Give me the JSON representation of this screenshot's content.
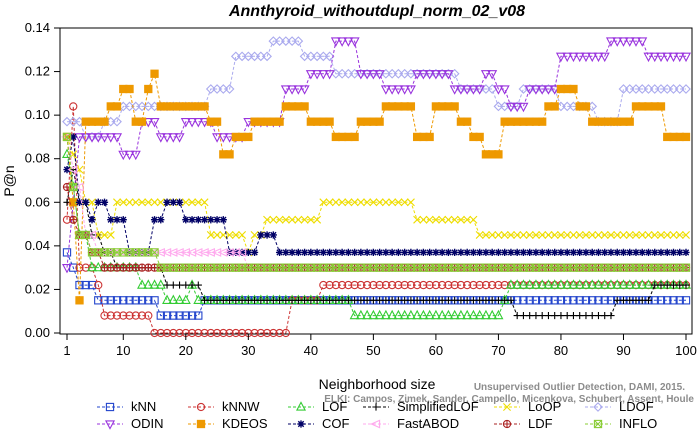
{
  "chart_data": {
    "type": "line",
    "title": "Annthyroid_withoutdupl_norm_02_v08",
    "xlabel": "Neighborhood size",
    "ylabel": "P@n",
    "xlim": [
      1,
      100
    ],
    "ylim": [
      0,
      0.14
    ],
    "x_ticks": [
      1,
      10,
      20,
      30,
      40,
      50,
      60,
      70,
      80,
      90,
      100
    ],
    "y_ticks": [
      0.0,
      0.02,
      0.04,
      0.06,
      0.08,
      0.1,
      0.12,
      0.14
    ],
    "x_tick_labels": [
      "1",
      "10",
      "20",
      "30",
      "40",
      "50",
      "60",
      "70",
      "80",
      "90",
      "100"
    ],
    "y_tick_labels": [
      "0.00",
      "0.02",
      "0.04",
      "0.06",
      "0.08",
      "0.10",
      "0.12",
      "0.14"
    ],
    "grid": false,
    "legend_position": "bottom",
    "credit": "ELKI: Campos, Zimek, Sander, Campello, Micenkova, Schubert, Assent, Houle\nUnsupervised Outlier Detection, DAMI, 2015.",
    "series": [
      {
        "name": "kNN",
        "color": "#2244cc",
        "marker": "square",
        "points": [
          [
            1,
            0.037
          ],
          [
            2,
            0.03
          ],
          [
            3,
            0.022
          ],
          [
            5,
            0.022
          ],
          [
            6,
            0.015
          ],
          [
            8,
            0.015
          ],
          [
            9,
            0.015
          ],
          [
            15,
            0.015
          ],
          [
            16,
            0.008
          ],
          [
            22,
            0.008
          ],
          [
            23,
            0.015
          ],
          [
            100,
            0.015
          ]
        ]
      },
      {
        "name": "kNNW",
        "color": "#cc3333",
        "marker": "circle",
        "points": [
          [
            1,
            0.052
          ],
          [
            2,
            0.104
          ],
          [
            3,
            0.03
          ],
          [
            6,
            0.022
          ],
          [
            7,
            0.008
          ],
          [
            14,
            0.008
          ],
          [
            15,
            0.0
          ],
          [
            36,
            0.0
          ],
          [
            37,
            0.015
          ],
          [
            41,
            0.015
          ],
          [
            42,
            0.022
          ],
          [
            100,
            0.022
          ]
        ]
      },
      {
        "name": "LOF",
        "color": "#33cc33",
        "marker": "triangle-up",
        "points": [
          [
            1,
            0.082
          ],
          [
            2,
            0.067
          ],
          [
            3,
            0.045
          ],
          [
            5,
            0.03
          ],
          [
            9,
            0.03
          ],
          [
            13,
            0.022
          ],
          [
            17,
            0.015
          ],
          [
            21,
            0.022
          ],
          [
            22,
            0.015
          ],
          [
            46,
            0.015
          ],
          [
            47,
            0.008
          ],
          [
            70,
            0.008
          ],
          [
            71,
            0.015
          ],
          [
            72,
            0.022
          ],
          [
            100,
            0.022
          ]
        ]
      },
      {
        "name": "SimplifiedLOF",
        "color": "#000000",
        "marker": "plus",
        "points": [
          [
            1,
            0.06
          ],
          [
            2,
            0.075
          ],
          [
            3,
            0.06
          ],
          [
            5,
            0.045
          ],
          [
            7,
            0.037
          ],
          [
            9,
            0.03
          ],
          [
            16,
            0.03
          ],
          [
            17,
            0.022
          ],
          [
            22,
            0.022
          ],
          [
            23,
            0.015
          ],
          [
            72,
            0.015
          ],
          [
            73,
            0.008
          ],
          [
            88,
            0.008
          ],
          [
            89,
            0.015
          ],
          [
            94,
            0.015
          ],
          [
            95,
            0.022
          ],
          [
            100,
            0.022
          ]
        ]
      },
      {
        "name": "LoOP",
        "color": "#eedd00",
        "marker": "cross",
        "points": [
          [
            1,
            0.09
          ],
          [
            2,
            0.082
          ],
          [
            3,
            0.075
          ],
          [
            4,
            0.06
          ],
          [
            6,
            0.045
          ],
          [
            9,
            0.06
          ],
          [
            22,
            0.06
          ],
          [
            24,
            0.045
          ],
          [
            29,
            0.045
          ],
          [
            30,
            0.037
          ],
          [
            31,
            0.045
          ],
          [
            33,
            0.052
          ],
          [
            41,
            0.052
          ],
          [
            42,
            0.06
          ],
          [
            56,
            0.06
          ],
          [
            57,
            0.052
          ],
          [
            66,
            0.052
          ],
          [
            67,
            0.045
          ],
          [
            100,
            0.045
          ]
        ]
      },
      {
        "name": "LDOF",
        "color": "#aaaaee",
        "marker": "diamond",
        "points": [
          [
            1,
            0.097
          ],
          [
            4,
            0.09
          ],
          [
            7,
            0.097
          ],
          [
            10,
            0.104
          ],
          [
            20,
            0.104
          ],
          [
            24,
            0.112
          ],
          [
            28,
            0.127
          ],
          [
            34,
            0.134
          ],
          [
            37,
            0.134
          ],
          [
            39,
            0.127
          ],
          [
            44,
            0.119
          ],
          [
            50,
            0.119
          ],
          [
            60,
            0.119
          ],
          [
            64,
            0.112
          ],
          [
            70,
            0.104
          ],
          [
            74,
            0.112
          ],
          [
            80,
            0.104
          ],
          [
            86,
            0.097
          ],
          [
            90,
            0.112
          ],
          [
            100,
            0.112
          ]
        ]
      },
      {
        "name": "ODIN",
        "color": "#9933dd",
        "marker": "triangle-down",
        "points": [
          [
            1,
            0.03
          ],
          [
            2,
            0.06
          ],
          [
            3,
            0.09
          ],
          [
            5,
            0.09
          ],
          [
            8,
            0.09
          ],
          [
            10,
            0.082
          ],
          [
            13,
            0.097
          ],
          [
            16,
            0.09
          ],
          [
            20,
            0.097
          ],
          [
            25,
            0.09
          ],
          [
            30,
            0.097
          ],
          [
            36,
            0.112
          ],
          [
            40,
            0.119
          ],
          [
            44,
            0.134
          ],
          [
            48,
            0.119
          ],
          [
            52,
            0.112
          ],
          [
            57,
            0.119
          ],
          [
            63,
            0.112
          ],
          [
            68,
            0.119
          ],
          [
            70,
            0.112
          ],
          [
            72,
            0.104
          ],
          [
            75,
            0.112
          ],
          [
            80,
            0.127
          ],
          [
            84,
            0.127
          ],
          [
            88,
            0.134
          ],
          [
            91,
            0.134
          ],
          [
            94,
            0.127
          ],
          [
            97,
            0.127
          ],
          [
            100,
            0.127
          ]
        ]
      },
      {
        "name": "KDEOS",
        "color": "#ee9900",
        "marker": "square-filled",
        "points": [
          [
            1,
            0.09
          ],
          [
            2,
            0.06
          ],
          [
            3,
            0.015
          ],
          [
            4,
            0.097
          ],
          [
            8,
            0.104
          ],
          [
            10,
            0.112
          ],
          [
            12,
            0.097
          ],
          [
            14,
            0.112
          ],
          [
            15,
            0.119
          ],
          [
            16,
            0.104
          ],
          [
            24,
            0.097
          ],
          [
            26,
            0.082
          ],
          [
            28,
            0.09
          ],
          [
            31,
            0.097
          ],
          [
            36,
            0.104
          ],
          [
            40,
            0.097
          ],
          [
            44,
            0.09
          ],
          [
            48,
            0.097
          ],
          [
            52,
            0.104
          ],
          [
            57,
            0.09
          ],
          [
            60,
            0.104
          ],
          [
            64,
            0.097
          ],
          [
            66,
            0.09
          ],
          [
            68,
            0.082
          ],
          [
            71,
            0.097
          ],
          [
            76,
            0.097
          ],
          [
            78,
            0.104
          ],
          [
            80,
            0.112
          ],
          [
            83,
            0.104
          ],
          [
            85,
            0.097
          ],
          [
            92,
            0.104
          ],
          [
            97,
            0.09
          ],
          [
            100,
            0.09
          ]
        ]
      },
      {
        "name": "COF",
        "color": "#000066",
        "marker": "asterisk",
        "points": [
          [
            1,
            0.075
          ],
          [
            2,
            0.09
          ],
          [
            3,
            0.06
          ],
          [
            5,
            0.052
          ],
          [
            6,
            0.06
          ],
          [
            8,
            0.052
          ],
          [
            11,
            0.037
          ],
          [
            15,
            0.052
          ],
          [
            17,
            0.06
          ],
          [
            20,
            0.052
          ],
          [
            25,
            0.052
          ],
          [
            27,
            0.037
          ],
          [
            32,
            0.045
          ],
          [
            35,
            0.037
          ],
          [
            100,
            0.037
          ]
        ]
      },
      {
        "name": "FastABOD",
        "color": "#ffaaee",
        "marker": "triangle-left",
        "points": [
          [
            1,
            0.09
          ],
          [
            2,
            0.075
          ],
          [
            3,
            0.067
          ],
          [
            4,
            0.045
          ],
          [
            6,
            0.037
          ],
          [
            11,
            0.037
          ],
          [
            22,
            0.037
          ],
          [
            24,
            0.037
          ],
          [
            30,
            0.03
          ],
          [
            100,
            0.03
          ]
        ]
      },
      {
        "name": "LDF",
        "color": "#aa2222",
        "marker": "circle-plus",
        "points": [
          [
            1,
            0.067
          ],
          [
            2,
            0.052
          ],
          [
            3,
            0.045
          ],
          [
            5,
            0.037
          ],
          [
            7,
            0.03
          ],
          [
            100,
            0.03
          ]
        ]
      },
      {
        "name": "INFLO",
        "color": "#88cc33",
        "marker": "square-cross",
        "points": [
          [
            1,
            0.09
          ],
          [
            2,
            0.067
          ],
          [
            3,
            0.045
          ],
          [
            5,
            0.037
          ],
          [
            7,
            0.037
          ],
          [
            10,
            0.037
          ],
          [
            13,
            0.037
          ],
          [
            14,
            0.037
          ],
          [
            16,
            0.03
          ],
          [
            100,
            0.03
          ]
        ]
      }
    ]
  }
}
